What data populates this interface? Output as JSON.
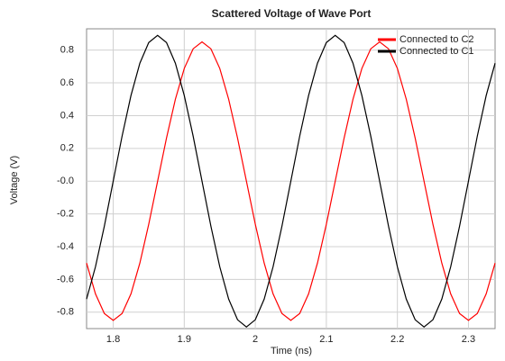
{
  "chart_data": {
    "type": "line",
    "title": "Scattered Voltage of Wave Port",
    "x_label": "Time (ns)",
    "y_label": "Voltage (V)",
    "x": [
      1.7625,
      1.775,
      1.7875,
      1.8,
      1.8125,
      1.825,
      1.8375,
      1.85,
      1.8625,
      1.875,
      1.8875,
      1.9,
      1.9125,
      1.925,
      1.9375,
      1.95,
      1.9625,
      1.975,
      1.9875,
      2.0,
      2.0125,
      2.025,
      2.0375,
      2.05,
      2.0625,
      2.075,
      2.0875,
      2.1,
      2.1125,
      2.125,
      2.1375,
      2.15,
      2.1625,
      2.175,
      2.1875,
      2.2,
      2.2125,
      2.225,
      2.2375,
      2.25,
      2.2625,
      2.275,
      2.2875,
      2.3,
      2.3125,
      2.325,
      2.3375
    ],
    "series": [
      {
        "name": "Connected to C2",
        "color": "#ff0000",
        "values": [
          -0.5,
          -0.688,
          -0.808,
          -0.85,
          -0.808,
          -0.688,
          -0.5,
          -0.263,
          0,
          0.263,
          0.5,
          0.688,
          0.808,
          0.85,
          0.808,
          0.688,
          0.5,
          0.263,
          0,
          -0.263,
          -0.5,
          -0.688,
          -0.808,
          -0.85,
          -0.808,
          -0.688,
          -0.5,
          -0.263,
          0,
          0.263,
          0.5,
          0.688,
          0.808,
          0.85,
          0.808,
          0.688,
          0.5,
          0.263,
          0,
          -0.263,
          -0.5,
          -0.688,
          -0.808,
          -0.85,
          -0.808,
          -0.688,
          -0.5
        ]
      },
      {
        "name": "Connected to C1",
        "color": "#000000",
        "values": [
          -0.72,
          -0.523,
          -0.275,
          0,
          0.275,
          0.523,
          0.72,
          0.846,
          0.89,
          0.846,
          0.72,
          0.523,
          0.275,
          0,
          -0.275,
          -0.523,
          -0.72,
          -0.846,
          -0.89,
          -0.846,
          -0.72,
          -0.523,
          -0.275,
          0,
          0.275,
          0.523,
          0.72,
          0.846,
          0.89,
          0.846,
          0.72,
          0.523,
          0.275,
          0,
          -0.275,
          -0.523,
          -0.72,
          -0.846,
          -0.89,
          -0.846,
          -0.72,
          -0.523,
          -0.275,
          0,
          0.275,
          0.523,
          0.72
        ]
      }
    ],
    "xlim": [
      1.7625,
      2.3375
    ],
    "xticks": [
      1.8,
      1.9,
      2.0,
      2.1,
      2.2,
      2.3
    ],
    "ylim": [
      -0.9,
      0.93
    ],
    "yticks": [
      -0.8,
      -0.6,
      -0.4,
      -0.2,
      {
        "value": 0,
        "label": "-0.0"
      },
      0.2,
      0.4,
      0.6,
      0.8
    ],
    "grid": true,
    "legend": "upper-right"
  }
}
